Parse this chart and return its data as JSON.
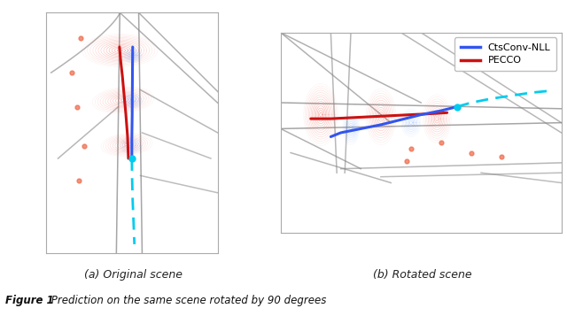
{
  "subplot_a_title": "(a) Original scene",
  "subplot_b_title": "(b) Rotated scene",
  "legend_entries": [
    "CtsConv-NLL",
    "PECCO"
  ],
  "legend_colors": [
    "#3355ee",
    "#cc1111"
  ],
  "cyan_color": "#00ccee",
  "background_color": "#ffffff",
  "road_color": "#888888",
  "road_linewidth": 1.1,
  "contour_red_color": "#ee3322",
  "contour_blue_color": "#4488ff",
  "figure_label": "Figure 1",
  "figure_caption": " Prediction on the same scene rotated by 90 degrees"
}
